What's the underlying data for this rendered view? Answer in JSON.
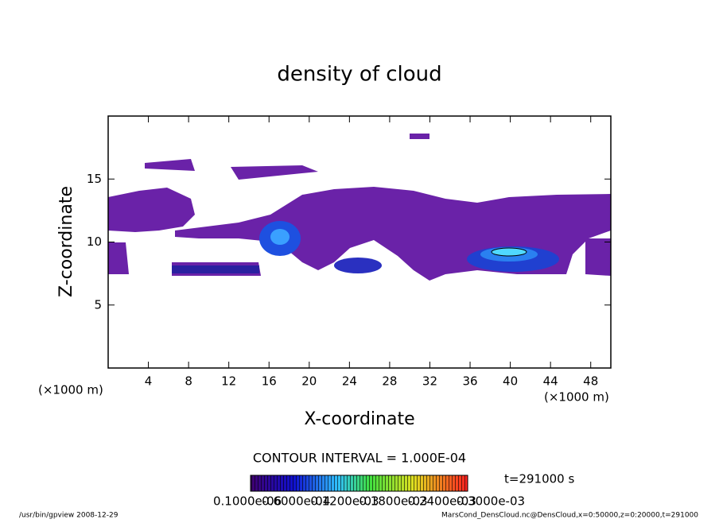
{
  "chart_data": {
    "type": "contour",
    "title": "density of cloud",
    "x_label": "X-coordinate",
    "y_label": "Z-coordinate",
    "x_unit": "(×1000 m)",
    "x_unit_right": "(×1000 m)",
    "xlim": [
      0,
      50
    ],
    "xticks": [
      4,
      8,
      12,
      16,
      20,
      24,
      28,
      32,
      36,
      40,
      44,
      48
    ],
    "ylim": [
      0,
      20
    ],
    "yticks": [
      5,
      10,
      15
    ],
    "contour_interval": "CONTOUR INTERVAL = 1.000E-04",
    "time": "t=291000 s",
    "colorbar_labels": [
      "0.1000e-06",
      "0.6000e-04",
      "0.1200e-03",
      "0.1800e-03",
      "0.2400e-03",
      "0.3000e-03"
    ],
    "footer_left": "/usr/bin/gpview  2008-12-29",
    "footer_right": "MarsCond_DensCloud.nc@DensCloud,x=0:50000,z=0:20000,t=291000"
  }
}
